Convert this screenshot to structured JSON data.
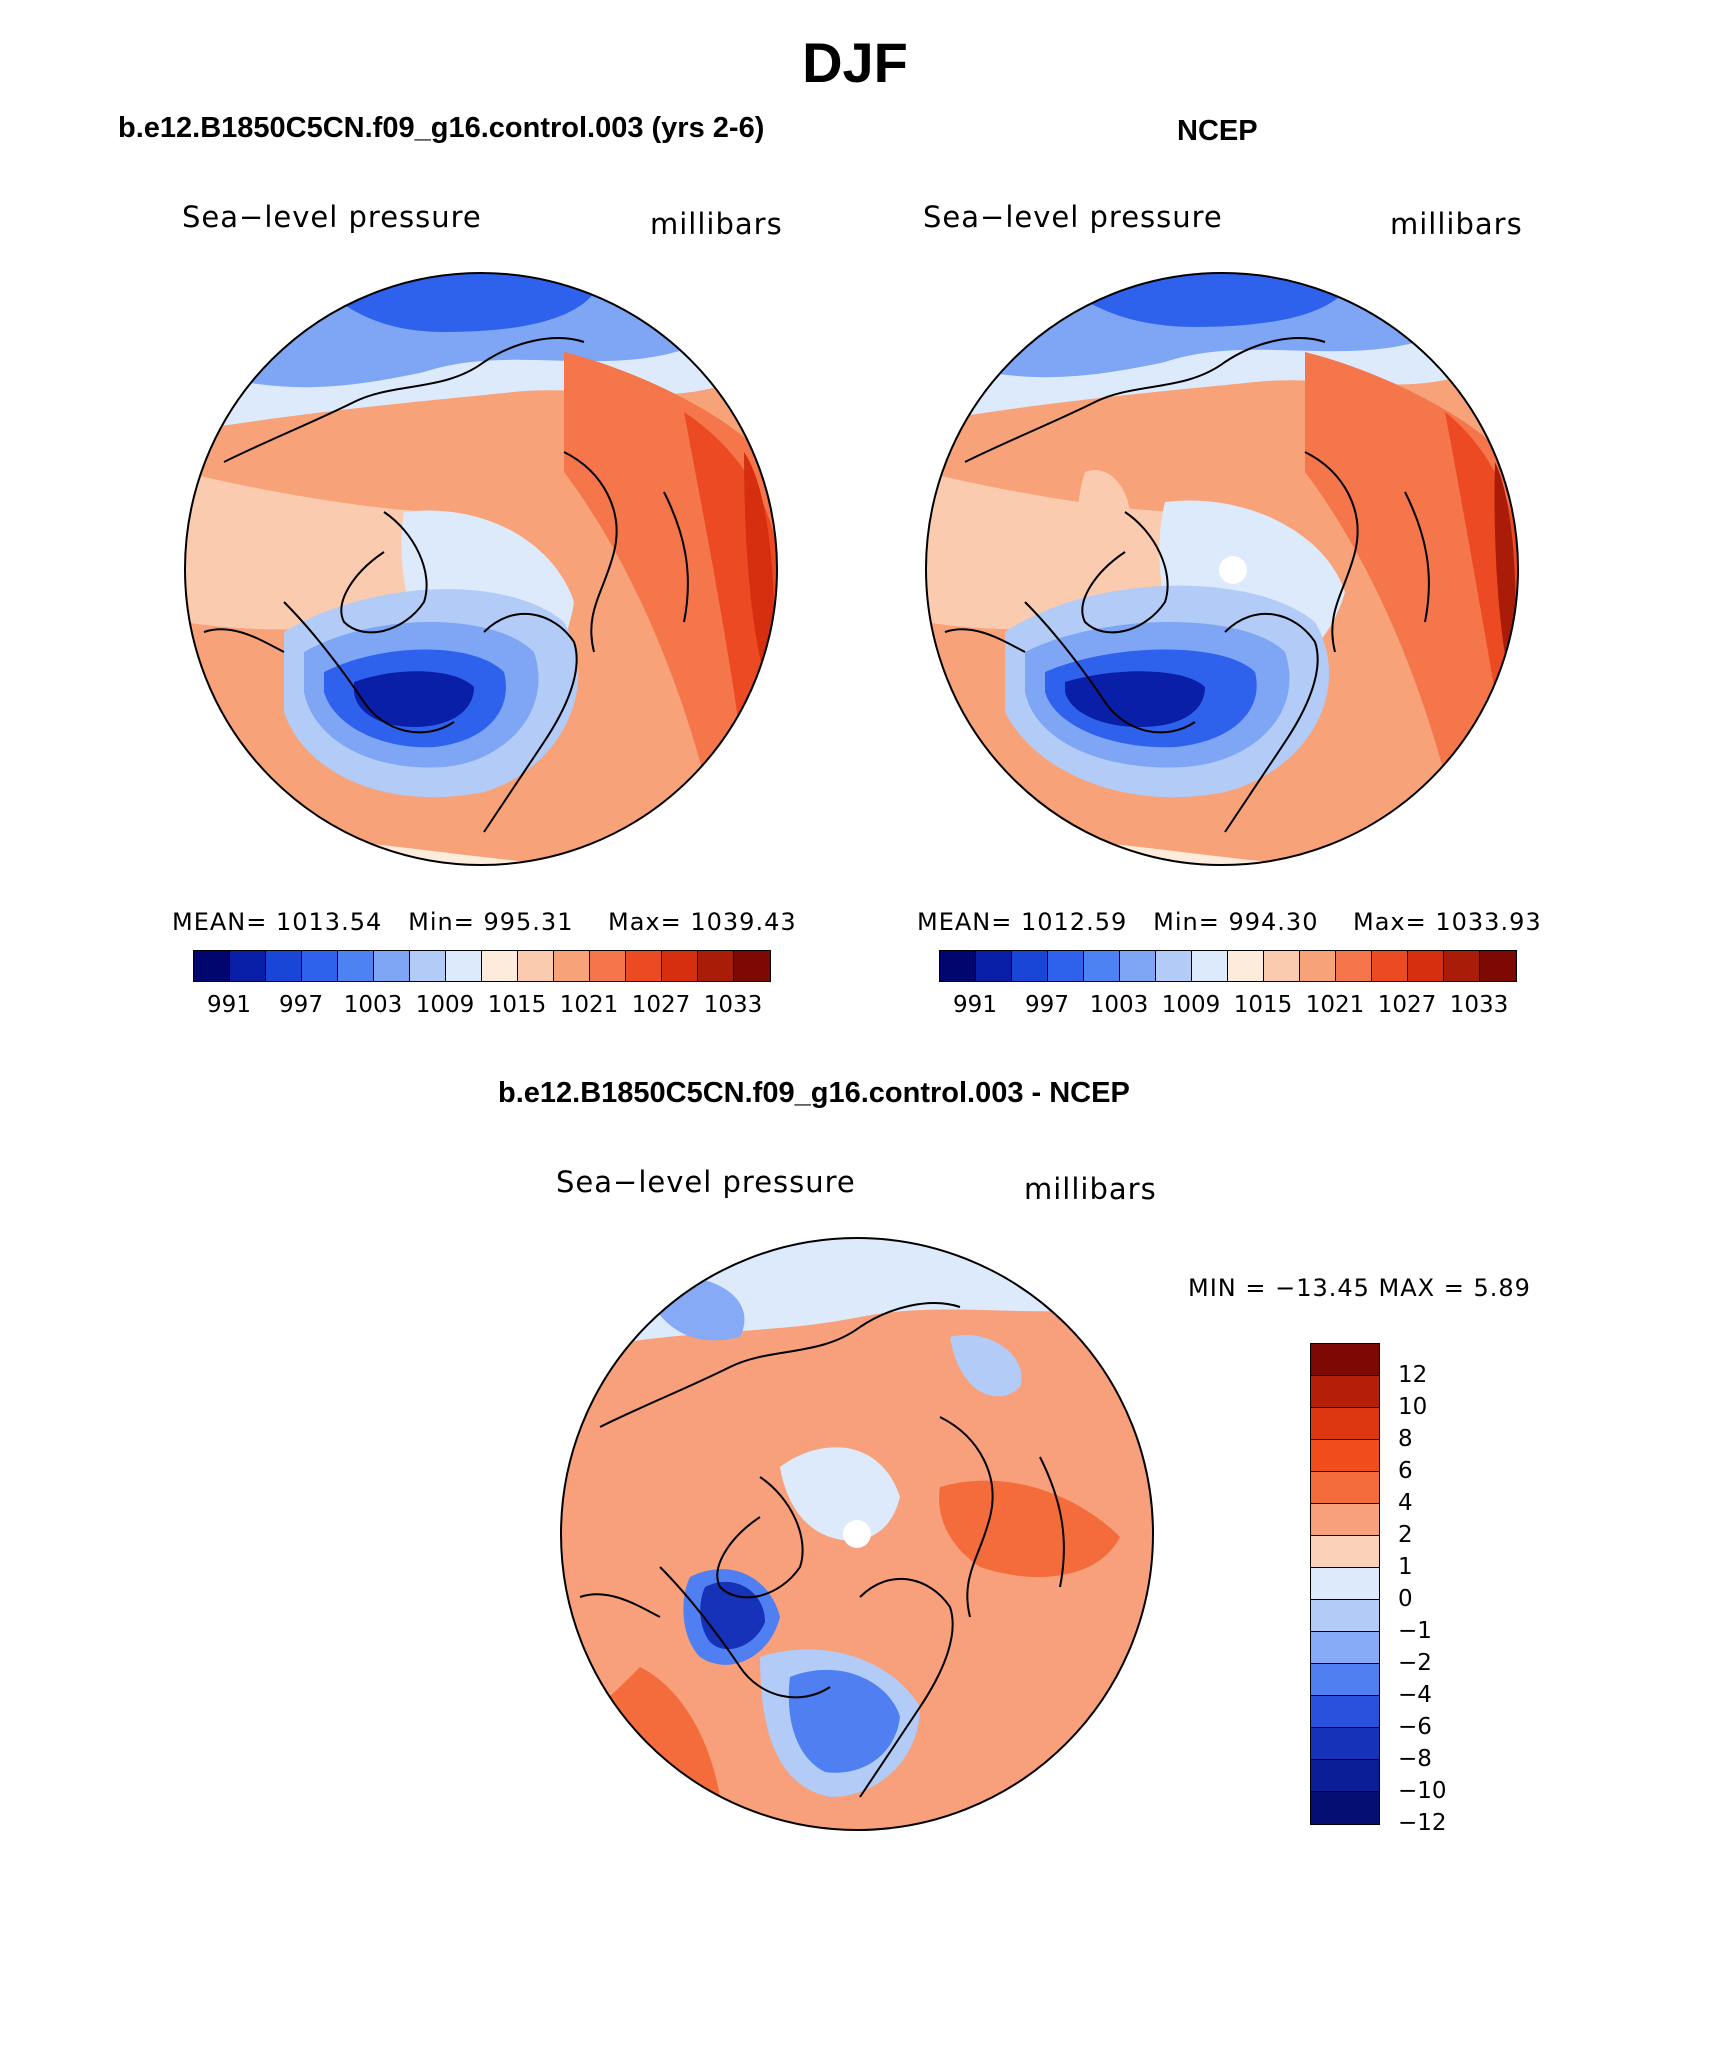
{
  "figure": {
    "title": "DJF"
  },
  "chart_data": [
    {
      "type": "heatmap",
      "title": "b.e12.B1850C5CN.f09_g16.control.003 (yrs 2-6)",
      "left_label": "Sea−level pressure",
      "right_label": "millibars",
      "stats": {
        "mean_label": "MEAN=",
        "mean": "1013.54",
        "min_label": "Min=",
        "min": "995.31",
        "max_label": "Max=",
        "max": "1039.43"
      },
      "colorbar_ticks": [
        "991",
        "997",
        "1003",
        "1009",
        "1015",
        "1021",
        "1027",
        "1033"
      ]
    },
    {
      "type": "heatmap",
      "title": "NCEP",
      "left_label": "Sea−level pressure",
      "right_label": "millibars",
      "stats": {
        "mean_label": "MEAN=",
        "mean": "1012.59",
        "min_label": "Min=",
        "min": "994.30",
        "max_label": "Max=",
        "max": "1033.93"
      },
      "colorbar_ticks": [
        "991",
        "997",
        "1003",
        "1009",
        "1015",
        "1021",
        "1027",
        "1033"
      ]
    },
    {
      "type": "heatmap",
      "title": "b.e12.B1850C5CN.f09_g16.control.003 - NCEP",
      "left_label": "Sea−level pressure",
      "right_label": "millibars",
      "minmax_text": "MIN = −13.45 MAX =    5.89",
      "colorbar_ticks": [
        "12",
        "10",
        "8",
        "6",
        "4",
        "2",
        "1",
        "0",
        "−1",
        "−2",
        "−4",
        "−6",
        "−8",
        "−10",
        "−12"
      ]
    }
  ],
  "palette": {
    "abs": [
      "#00066d",
      "#0a1fa8",
      "#1a46d8",
      "#2f62ec",
      "#4c82f2",
      "#7ea6f4",
      "#b2cbf7",
      "#dceafb",
      "#fdebdb",
      "#fbcbb0",
      "#f8a27a",
      "#f4764a",
      "#ec4a22",
      "#d62f0f",
      "#a81c08",
      "#7d0a02"
    ],
    "diff": [
      "#7d0a02",
      "#b41f09",
      "#dc3710",
      "#f04c1c",
      "#f46c3c",
      "#f8a07b",
      "#fbd2b9",
      "#dceafb",
      "#b2cbf7",
      "#86aaf5",
      "#4f7ff0",
      "#2852dc",
      "#1532b8",
      "#0b1e98",
      "#050e72"
    ]
  }
}
